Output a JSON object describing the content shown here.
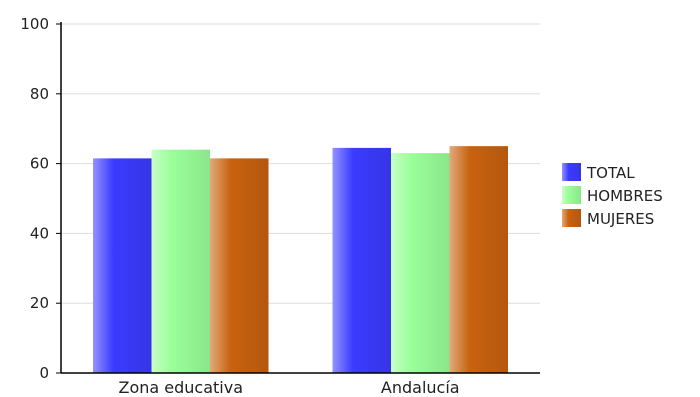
{
  "chart_data": {
    "type": "bar",
    "categories": [
      "Zona educativa",
      "Andalucía"
    ],
    "series": [
      {
        "name": "TOTAL",
        "values": [
          61.5,
          64.5
        ],
        "color": "#3b3bff"
      },
      {
        "name": "HOMBRES",
        "values": [
          64.0,
          63.0
        ],
        "color": "#99ff99"
      },
      {
        "name": "MUJERES",
        "values": [
          61.5,
          65.0
        ],
        "color": "#c8620f"
      }
    ],
    "y_ticks": [
      "0",
      "20",
      "40",
      "60",
      "80",
      "100"
    ],
    "ylim": [
      0,
      100
    ],
    "grid": true,
    "legend_position": "right"
  }
}
